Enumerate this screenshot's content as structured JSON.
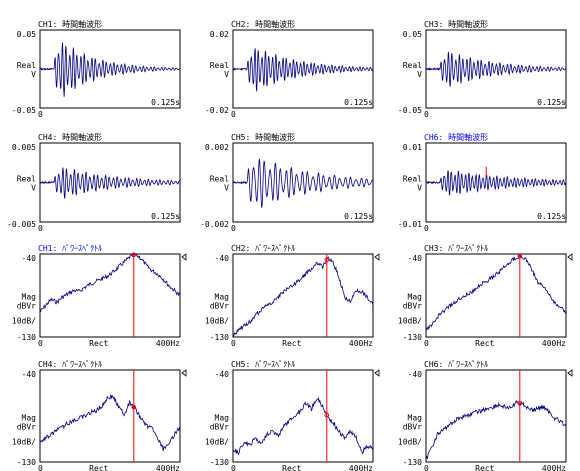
{
  "colors": {
    "trace": "#000080",
    "active_title": "#0000ff",
    "cursor": "#ff0000",
    "frame": "#000000",
    "background": "#ffffff"
  },
  "time_panels": [
    {
      "title": "CH1: 時間軸波形",
      "active": false,
      "ymax": "0.05",
      "ymin": "-0.05",
      "ylabel": "Real",
      "yunit": "V",
      "xstart": "0",
      "xend": "0.125s",
      "amp": 0.95,
      "onset": 0.1,
      "decay": 4.0,
      "freq": 38,
      "cursor": false
    },
    {
      "title": "CH2: 時間軸波形",
      "active": false,
      "ymax": "0.02",
      "ymin": "-0.02",
      "ylabel": "Real",
      "yunit": "V",
      "xstart": "0",
      "xend": "0.125s",
      "amp": 0.72,
      "onset": 0.1,
      "decay": 3.2,
      "freq": 40,
      "cursor": false
    },
    {
      "title": "CH3: 時間軸波形",
      "active": false,
      "ymax": "0.05",
      "ymin": "-0.05",
      "ylabel": "Real",
      "yunit": "V",
      "xstart": "0",
      "xend": "0.125s",
      "amp": 0.58,
      "onset": 0.1,
      "decay": 3.0,
      "freq": 38,
      "cursor": false
    },
    {
      "title": "CH4: 時間軸波形",
      "active": false,
      "ymax": "0.005",
      "ymin": "-0.005",
      "ylabel": "Real",
      "yunit": "V",
      "xstart": "0",
      "xend": "0.125s",
      "amp": 0.48,
      "onset": 0.1,
      "decay": 2.6,
      "freq": 36,
      "cursor": false
    },
    {
      "title": "CH5: 時間軸波形",
      "active": false,
      "ymax": "0.002",
      "ymin": "-0.002",
      "ylabel": "Real",
      "yunit": "V",
      "xstart": "0",
      "xend": "0.125s",
      "amp": 0.8,
      "onset": 0.1,
      "decay": 2.4,
      "freq": 26,
      "cursor": false
    },
    {
      "title": "CH6: 時間軸波形",
      "active": true,
      "ymax": "0.01",
      "ymin": "-0.01",
      "ylabel": "Real",
      "yunit": "V",
      "xstart": "0",
      "xend": "0.125s",
      "amp": 0.38,
      "onset": 0.1,
      "decay": 2.0,
      "freq": 40,
      "cursor": true
    }
  ],
  "spectrum_panels": [
    {
      "title": "CH1: ﾊﾟﾜｰｽﾍﾟｸﾄﾙ",
      "active": true,
      "ymax": "-40",
      "ymin": "-130",
      "ylabel": "Mag",
      "yunit": "dBVr",
      "scale": "10dB/",
      "xstart": "0",
      "xmid": "Rect",
      "xend": "400Hz",
      "curve": [
        0.7,
        0.62,
        0.55,
        0.58,
        0.52,
        0.48,
        0.44,
        0.45,
        0.4,
        0.36,
        0.33,
        0.3,
        0.27,
        0.22,
        0.16,
        0.1,
        0.04,
        0.0,
        0.05,
        0.14,
        0.2,
        0.24,
        0.3,
        0.38,
        0.44,
        0.5
      ]
    },
    {
      "title": "CH2: ﾊﾟﾜｰｽﾍﾟｸﾄﾙ",
      "active": false,
      "ymax": "-40",
      "ymin": "-130",
      "ylabel": "Mag",
      "yunit": "dBVr",
      "scale": "10dB/",
      "xstart": "0",
      "xmid": "Rect",
      "xend": "400Hz",
      "curve": [
        0.98,
        0.92,
        0.86,
        0.82,
        0.74,
        0.68,
        0.62,
        0.58,
        0.52,
        0.46,
        0.4,
        0.36,
        0.3,
        0.24,
        0.18,
        0.1,
        0.16,
        0.04,
        0.12,
        0.3,
        0.52,
        0.58,
        0.44,
        0.46,
        0.52,
        0.62
      ]
    },
    {
      "title": "CH3: ﾊﾟﾜｰｽﾍﾟｸﾄﾙ",
      "active": false,
      "ymax": "-40",
      "ymin": "-130",
      "ylabel": "Mag",
      "yunit": "dBVr",
      "scale": "10dB/",
      "xstart": "0",
      "xmid": "Rect",
      "xend": "400Hz",
      "curve": [
        0.92,
        0.86,
        0.76,
        0.7,
        0.64,
        0.58,
        0.54,
        0.5,
        0.46,
        0.42,
        0.36,
        0.32,
        0.28,
        0.22,
        0.16,
        0.1,
        0.04,
        0.02,
        0.08,
        0.2,
        0.34,
        0.4,
        0.48,
        0.58,
        0.64,
        0.7
      ]
    },
    {
      "title": "CH4: ﾊﾟﾜｰｽﾍﾟｸﾄﾙ",
      "active": false,
      "ymax": "-40",
      "ymin": "-130",
      "ylabel": "Mag",
      "yunit": "dBVr",
      "scale": "10dB/",
      "xstart": "0",
      "xmid": "Rect",
      "xend": "400Hz",
      "curve": [
        0.78,
        0.74,
        0.7,
        0.66,
        0.62,
        0.58,
        0.56,
        0.52,
        0.5,
        0.46,
        0.44,
        0.4,
        0.3,
        0.28,
        0.4,
        0.48,
        0.36,
        0.42,
        0.52,
        0.6,
        0.64,
        0.74,
        0.86,
        0.82,
        0.7,
        0.62
      ]
    },
    {
      "title": "CH5: ﾊﾟﾜｰｽﾍﾟｸﾄﾙ",
      "active": false,
      "ymax": "-40",
      "ymin": "-130",
      "ylabel": "Mag",
      "yunit": "dBVr",
      "scale": "10dB/",
      "xstart": "0",
      "xmid": "Rect",
      "xend": "400Hz",
      "curve": [
        0.86,
        0.9,
        0.78,
        0.82,
        0.74,
        0.8,
        0.7,
        0.66,
        0.72,
        0.62,
        0.56,
        0.5,
        0.44,
        0.36,
        0.42,
        0.3,
        0.4,
        0.52,
        0.58,
        0.68,
        0.74,
        0.66,
        0.74,
        0.9,
        0.82,
        0.86
      ]
    },
    {
      "title": "CH6: ﾊﾟﾜｰｽﾍﾟｸﾄﾙ",
      "active": false,
      "ymax": "-40",
      "ymin": "-130",
      "ylabel": "Mag",
      "yunit": "dBVr",
      "scale": "10dB/",
      "xstart": "0",
      "xmid": "Rect",
      "xend": "400Hz",
      "curve": [
        0.98,
        0.84,
        0.7,
        0.66,
        0.6,
        0.56,
        0.52,
        0.5,
        0.48,
        0.46,
        0.44,
        0.42,
        0.4,
        0.38,
        0.4,
        0.42,
        0.36,
        0.36,
        0.4,
        0.44,
        0.42,
        0.4,
        0.46,
        0.52,
        0.56,
        0.6
      ]
    }
  ]
}
